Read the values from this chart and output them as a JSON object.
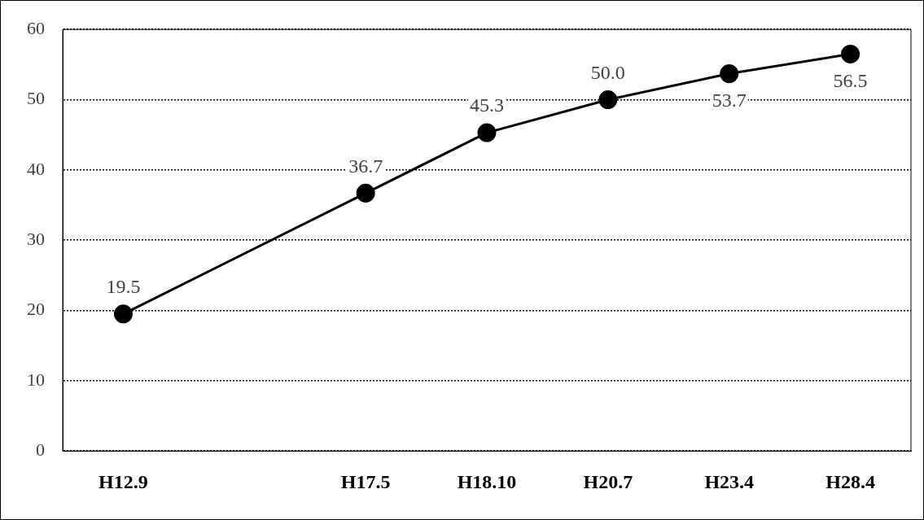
{
  "chart_data": {
    "type": "line",
    "categories": [
      "H12.9",
      null,
      "H17.5",
      "H18.10",
      "H20.7",
      "H23.4",
      "H28.4"
    ],
    "series": [
      {
        "color": "#000000",
        "values": [
          19.5,
          null,
          36.7,
          45.3,
          50.0,
          53.7,
          56.5
        ]
      }
    ],
    "value_labels": [
      "19.5",
      null,
      "36.7",
      "45.3",
      "50.0",
      "53.7",
      "56.5"
    ],
    "ylim": [
      0,
      60
    ],
    "yticks": [
      0,
      10,
      20,
      30,
      40,
      50,
      60
    ],
    "grid": "y",
    "marker": "circle",
    "line_style": "solid",
    "legend": false
  }
}
